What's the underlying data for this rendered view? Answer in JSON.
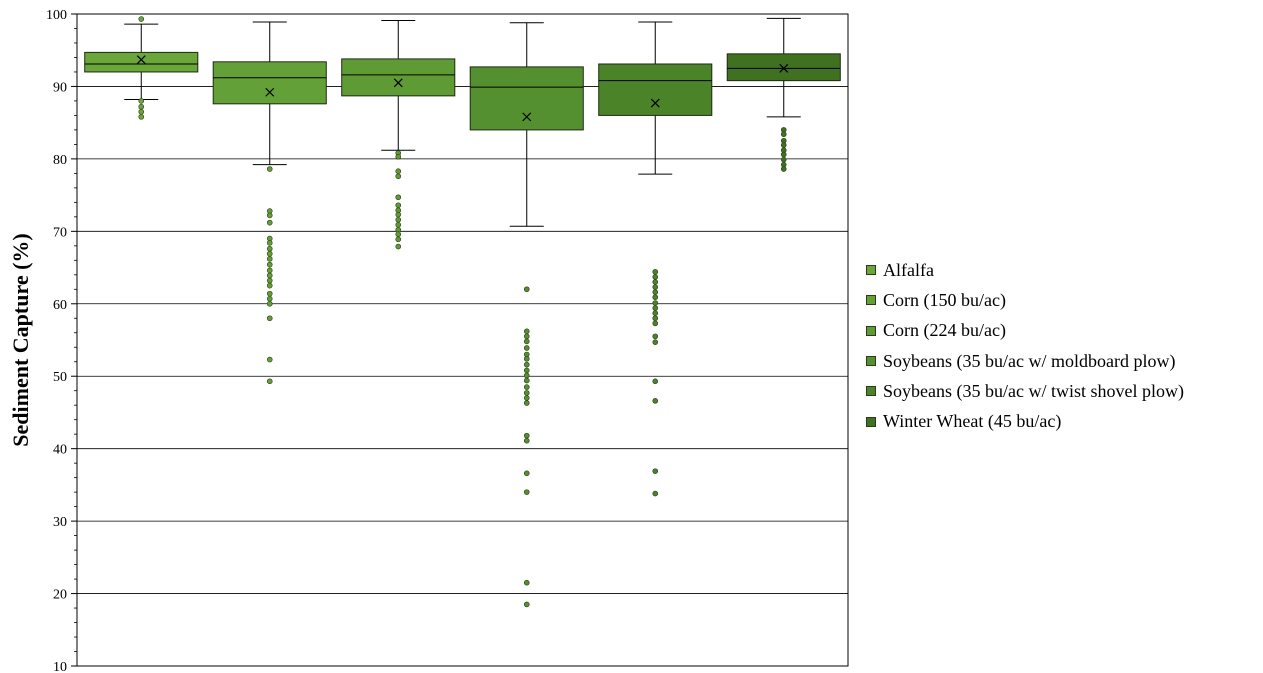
{
  "chart_data": {
    "type": "box",
    "ylabel": "Sediment Capture (%)",
    "ylim": [
      10,
      100
    ],
    "yticks": [
      10,
      20,
      30,
      40,
      50,
      60,
      70,
      80,
      90,
      100
    ],
    "grid": true,
    "legend_position": "right",
    "series": [
      {
        "name": "Alfalfa",
        "color": "#6aa63a",
        "whisker_low": 88.2,
        "q1": 92.0,
        "median": 93.1,
        "q3": 94.7,
        "whisker_high": 98.6,
        "mean": 93.7,
        "outliers": [
          99.3,
          88.0,
          87.2,
          86.5,
          85.8
        ]
      },
      {
        "name": "Corn (150 bu/ac)",
        "color": "#64a038",
        "whisker_low": 79.2,
        "q1": 87.6,
        "median": 91.2,
        "q3": 93.4,
        "whisker_high": 98.9,
        "mean": 89.2,
        "outliers": [
          78.6,
          72.8,
          72.2,
          71.2,
          69.0,
          68.4,
          67.6,
          66.9,
          66.2,
          65.4,
          64.6,
          63.9,
          63.2,
          62.5,
          61.4,
          60.7,
          60.0,
          58.0,
          52.3,
          49.3
        ]
      },
      {
        "name": "Corn (224 bu/ac)",
        "color": "#5f9b35",
        "whisker_low": 81.2,
        "q1": 88.7,
        "median": 91.6,
        "q3": 93.8,
        "whisker_high": 99.1,
        "mean": 90.5,
        "outliers": [
          80.8,
          80.3,
          78.3,
          77.6,
          74.7,
          73.6,
          72.9,
          72.3,
          71.6,
          70.9,
          70.2,
          69.6,
          68.9,
          67.9
        ]
      },
      {
        "name": "Soybeans (35 bu/ac w/ moldboard plow)",
        "color": "#548f30",
        "whisker_low": 70.7,
        "q1": 84.0,
        "median": 89.9,
        "q3": 92.7,
        "whisker_high": 98.8,
        "mean": 85.8,
        "outliers": [
          62.0,
          56.2,
          55.5,
          54.8,
          53.9,
          53.0,
          52.4,
          51.6,
          50.8,
          50.1,
          49.4,
          48.5,
          47.7,
          47.0,
          46.3,
          41.8,
          41.1,
          36.6,
          34.0,
          21.5,
          18.5
        ]
      },
      {
        "name": "Soybeans (35 bu/ac w/ twist shovel plow)",
        "color": "#4b8329",
        "whisker_low": 77.9,
        "q1": 86.0,
        "median": 90.8,
        "q3": 93.1,
        "whisker_high": 98.9,
        "mean": 87.7,
        "outliers": [
          64.4,
          63.7,
          63.0,
          62.3,
          61.6,
          60.9,
          60.1,
          59.4,
          58.7,
          58.0,
          57.3,
          55.5,
          54.7,
          49.3,
          46.6,
          36.9,
          33.8
        ]
      },
      {
        "name": "Winter Wheat (45 bu/ac)",
        "color": "#3f7121",
        "whisker_low": 85.8,
        "q1": 90.8,
        "median": 92.5,
        "q3": 94.5,
        "whisker_high": 99.4,
        "mean": 92.5,
        "outliers": [
          84.0,
          83.4,
          82.5,
          81.9,
          81.2,
          80.6,
          79.9,
          79.2,
          78.6
        ]
      }
    ]
  }
}
